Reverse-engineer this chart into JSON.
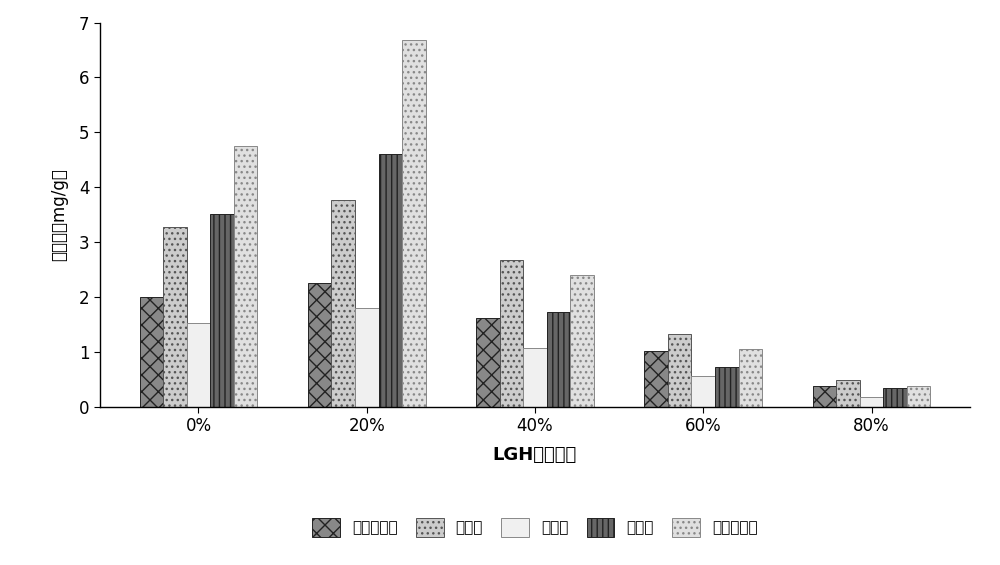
{
  "categories": [
    "0%",
    "20%",
    "40%",
    "60%",
    "80%"
  ],
  "series": {
    "芦荟大黄素": [
      2.0,
      2.25,
      1.62,
      1.02,
      0.38
    ],
    "大黄酸": [
      3.28,
      3.76,
      2.68,
      1.32,
      0.48
    ],
    "大黄素": [
      1.52,
      1.8,
      1.08,
      0.56,
      0.18
    ],
    "大黄酚": [
      3.52,
      4.6,
      1.72,
      0.72,
      0.35
    ],
    "大黄素甲醚": [
      4.75,
      6.68,
      2.4,
      1.05,
      0.38
    ]
  },
  "series_order": [
    "芦荟大黄素",
    "大黄酸",
    "大黄素",
    "大黄酚",
    "大黄素甲醚"
  ],
  "ylabel": "提取率（mg/g）",
  "xlabel": "LGH的含水量",
  "ylim": [
    0,
    7
  ],
  "yticks": [
    0,
    1,
    2,
    3,
    4,
    5,
    6,
    7
  ],
  "legend_labels": [
    "芦荟大黄素",
    "大黄酸",
    "大黄素",
    "大黄酚",
    "大黄素甲醚"
  ],
  "bar_width": 0.14,
  "figure_facecolor": "#ffffff"
}
